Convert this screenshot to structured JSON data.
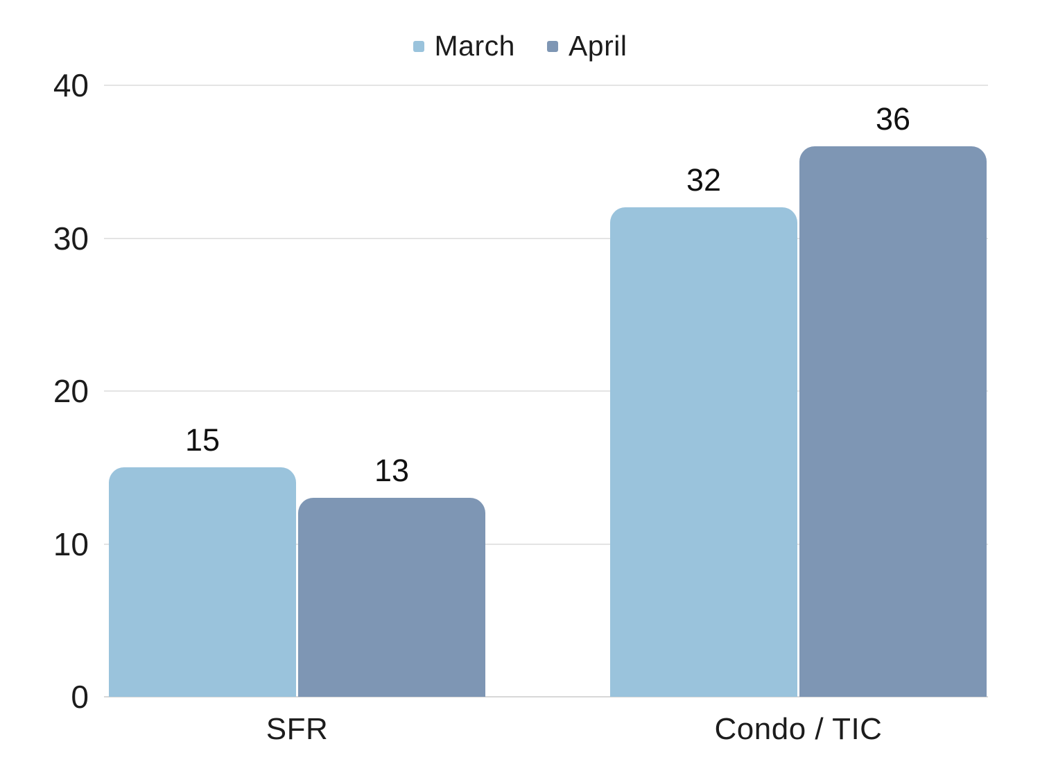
{
  "chart_data": {
    "type": "bar",
    "categories": [
      "SFR",
      "Condo / TIC"
    ],
    "series": [
      {
        "name": "March",
        "color": "#9AC3DC",
        "values": [
          15,
          32
        ]
      },
      {
        "name": "April",
        "color": "#7E96B4",
        "values": [
          13,
          36
        ]
      }
    ],
    "value_labels": [
      [
        "15",
        "32"
      ],
      [
        "13",
        "36"
      ]
    ],
    "title": "",
    "xlabel": "",
    "ylabel": "",
    "ylim": [
      0,
      40
    ],
    "yticks": [
      0,
      10,
      20,
      30,
      40
    ],
    "grid": true,
    "legend_position": "top-center"
  },
  "colors": {
    "background": "#FFFFFF",
    "gridline": "#E4E4E4",
    "axis_line": "#D7D7D7",
    "text": "#1C1C1C"
  }
}
